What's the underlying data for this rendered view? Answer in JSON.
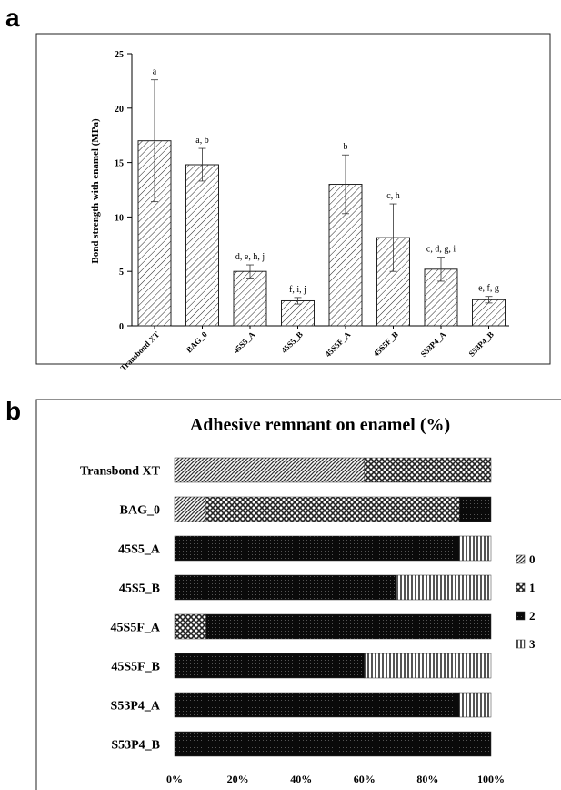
{
  "panel_a": {
    "letter": "a",
    "chart_data": {
      "type": "bar",
      "categories": [
        "Transbond XT",
        "BAG_0",
        "45S5_A",
        "45S5_B",
        "45S5F_A",
        "45S5F_B",
        "S53P4_A",
        "S53P4_B"
      ],
      "values": [
        17.0,
        14.8,
        5.0,
        2.3,
        13.0,
        8.1,
        5.2,
        2.4
      ],
      "errors": [
        5.6,
        1.5,
        0.6,
        0.3,
        2.7,
        3.1,
        1.1,
        0.3
      ],
      "letters": [
        "a",
        "a, b",
        "d, e, h, j",
        "f, i, j",
        "b",
        "c, h",
        "c, d, g, i",
        "e, f, g"
      ],
      "ylabel": "Bond strength with enamel (MPa)",
      "ylim": [
        0,
        25
      ],
      "yticks": [
        0,
        5,
        10,
        15,
        20,
        25
      ],
      "grid": false
    }
  },
  "panel_b": {
    "letter": "b",
    "chart_data": {
      "type": "bar",
      "orientation": "horizontal",
      "stacked": true,
      "title": "Adhesive remnant on enamel (%)",
      "categories": [
        "Transbond XT",
        "BAG_0",
        "45S5_A",
        "45S5_B",
        "45S5F_A",
        "45S5F_B",
        "S53P4_A",
        "S53P4_B"
      ],
      "series": [
        {
          "name": "0",
          "values": [
            60,
            10,
            0,
            0,
            0,
            0,
            0,
            0
          ]
        },
        {
          "name": "1",
          "values": [
            40,
            80,
            0,
            0,
            10,
            0,
            0,
            0
          ]
        },
        {
          "name": "2",
          "values": [
            0,
            10,
            90,
            70,
            90,
            60,
            90,
            100
          ]
        },
        {
          "name": "3",
          "values": [
            0,
            0,
            10,
            30,
            0,
            40,
            10,
            0
          ]
        }
      ],
      "xticks": [
        "0%",
        "20%",
        "40%",
        "60%",
        "80%",
        "100%"
      ],
      "xlim": [
        0,
        100
      ],
      "legend": "right"
    }
  }
}
